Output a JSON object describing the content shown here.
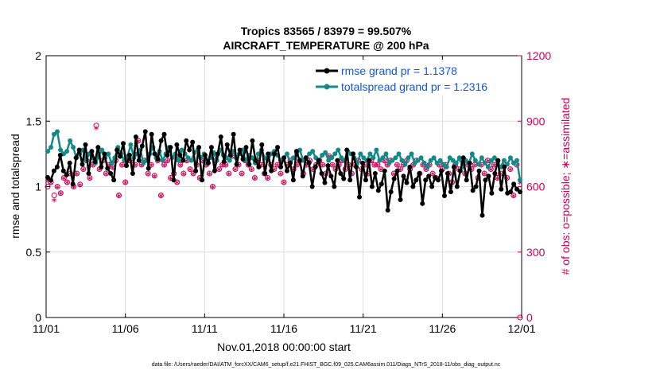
{
  "colors": {
    "rmse": "#000000",
    "spread": "#138a8a",
    "obs": "#cc0055",
    "grid": "#dddddd",
    "legend_text": "#1155ee"
  },
  "chart_data": {
    "type": "line",
    "title_line1": "Tropics 83565 / 83979 = 99.507%",
    "title_line2": "AIRCRAFT_TEMPERATURE @ 200 hPa",
    "ylabel_left": "rmse and totalspread",
    "ylabel_right": "# of obs: o=possible; ∗=assimilated",
    "xlabel": "Nov.01,2018 00:00:00 start",
    "footnote": "data file: /Users/raeder/DAI/ATM_forcXX/CAM6_setup/f.e21.FHIST_BGC.f09_025.CAM6assim.011/Diags_NTrS_2018-11/obs_diag_output.nc",
    "ylim_left": [
      0,
      2
    ],
    "ylim_right": [
      0,
      1200
    ],
    "xlim_days": [
      0,
      30
    ],
    "x_tick_labels": [
      "11/01",
      "11/06",
      "11/11",
      "11/16",
      "11/21",
      "11/26",
      "12/01"
    ],
    "y_tick_labels_left": [
      "0",
      "0.5",
      "1",
      "1.5",
      "2"
    ],
    "y_tick_labels_right": [
      "0",
      "300",
      "600",
      "900",
      "1200"
    ],
    "legend": [
      {
        "label": "rmse grand pr = 1.1378",
        "series": "rmse"
      },
      {
        "label": "totalspread grand pr = 1.2316",
        "series": "totalspread"
      }
    ],
    "series": [
      {
        "name": "rmse",
        "axis": "left",
        "values": [
          1.07,
          1.05,
          1.12,
          1.15,
          1.24,
          1.12,
          1.09,
          1.18,
          1.02,
          1.22,
          1.28,
          1.17,
          1.32,
          1.1,
          1.27,
          1.19,
          1.3,
          1.15,
          1.25,
          1.14,
          1.1,
          1.05,
          1.28,
          1.23,
          1.33,
          1.16,
          1.24,
          1.1,
          1.38,
          1.2,
          1.31,
          1.42,
          1.14,
          1.4,
          1.25,
          1.21,
          1.35,
          1.4,
          1.24,
          1.3,
          1.05,
          1.32,
          1.24,
          1.2,
          1.35,
          1.28,
          1.34,
          1.12,
          1.3,
          1.05,
          1.24,
          1.18,
          1.3,
          1.12,
          1.25,
          1.38,
          1.19,
          1.32,
          1.24,
          1.4,
          1.17,
          1.28,
          1.21,
          1.3,
          1.17,
          1.35,
          1.2,
          1.15,
          1.32,
          1.1,
          1.25,
          1.12,
          1.25,
          1.3,
          1.15,
          1.22,
          1.12,
          1.18,
          1.05,
          1.27,
          1.2,
          1.08,
          1.22,
          1.18,
          1.0,
          1.15,
          1.2,
          1.1,
          1.03,
          1.16,
          1.08,
          1.0,
          1.2,
          1.1,
          1.06,
          1.28,
          1.05,
          1.25,
          1.15,
          0.92,
          1.18,
          1.05,
          1.2,
          1.0,
          1.1,
          0.97,
          1.02,
          1.12,
          0.82,
          0.96,
          1.06,
          1.12,
          0.9,
          1.08,
          1.03,
          1.15,
          1.0,
          1.05,
          1.1,
          0.87,
          1.05,
          1.08,
          1.0,
          1.07,
          1.05,
          1.12,
          0.93,
          1.1,
          0.96,
          1.15,
          1.0,
          1.12,
          1.22,
          1.05,
          1.18,
          0.97,
          1.0,
          1.12,
          0.78,
          1.05,
          1.08,
          0.95,
          1.1,
          1.2,
          0.98,
          1.15,
          0.95,
          0.96,
          1.02,
          0.98,
          0.96
        ]
      },
      {
        "name": "totalspread",
        "axis": "left",
        "values": [
          1.27,
          1.3,
          1.4,
          1.42,
          1.28,
          1.25,
          1.27,
          1.35,
          1.3,
          1.22,
          1.25,
          1.28,
          1.2,
          1.25,
          1.22,
          1.18,
          1.23,
          1.28,
          1.22,
          1.25,
          1.18,
          1.22,
          1.3,
          1.25,
          1.2,
          1.23,
          1.32,
          1.22,
          1.25,
          1.28,
          1.18,
          1.2,
          1.25,
          1.3,
          1.22,
          1.27,
          1.2,
          1.25,
          1.3,
          1.22,
          1.25,
          1.2,
          1.28,
          1.25,
          1.22,
          1.2,
          1.26,
          1.28,
          1.22,
          1.25,
          1.18,
          1.22,
          1.26,
          1.2,
          1.28,
          1.24,
          1.22,
          1.2,
          1.27,
          1.22,
          1.25,
          1.28,
          1.2,
          1.24,
          1.22,
          1.18,
          1.25,
          1.28,
          1.22,
          1.2,
          1.25,
          1.27,
          1.24,
          1.2,
          1.22,
          1.25,
          1.18,
          1.22,
          1.25,
          1.28,
          1.2,
          1.22,
          1.25,
          1.27,
          1.22,
          1.2,
          1.24,
          1.26,
          1.2,
          1.22,
          1.25,
          1.28,
          1.22,
          1.2,
          1.27,
          1.25,
          1.22,
          1.18,
          1.25,
          1.22,
          1.2,
          1.25,
          1.22,
          1.28,
          1.2,
          1.22,
          1.25,
          1.18,
          1.2,
          1.22,
          1.25,
          1.2,
          1.17,
          1.22,
          1.25,
          1.18,
          1.2,
          1.22,
          1.18,
          1.15,
          1.2,
          1.22,
          1.18,
          1.2,
          1.17,
          1.15,
          1.22,
          1.2,
          1.18,
          1.22,
          1.15,
          1.2,
          1.18,
          1.25,
          1.2,
          1.17,
          1.22,
          1.18,
          1.15,
          1.2,
          1.22,
          1.18,
          1.15,
          1.2,
          1.17,
          1.22,
          1.18,
          1.2,
          1.05
        ]
      },
      {
        "name": "obs_assimilated",
        "axis": "right",
        "values": [
          630,
          620,
          540,
          600,
          570,
          640,
          620,
          660,
          600,
          660,
          610,
          680,
          720,
          640,
          700,
          870,
          680,
          720,
          660,
          700,
          690,
          720,
          560,
          700,
          620,
          720,
          720,
          700,
          810,
          700,
          720,
          660,
          700,
          650,
          720,
          560,
          700,
          720,
          640,
          660,
          620,
          700,
          660,
          720,
          680,
          660,
          700,
          640,
          720,
          700,
          660,
          600,
          720,
          680,
          700,
          700,
          660,
          740,
          680,
          700,
          660,
          720,
          700,
          680,
          640,
          720,
          700,
          660,
          640,
          700,
          680,
          700,
          660,
          620,
          700,
          720,
          680,
          700,
          720,
          660,
          700,
          720,
          680,
          700,
          720,
          700,
          660,
          740,
          700,
          680,
          700,
          720,
          680,
          700,
          660,
          700,
          720,
          680,
          700,
          660,
          720,
          700,
          700,
          680,
          720,
          700,
          720,
          660,
          700,
          680,
          700,
          720,
          680,
          700,
          720,
          660,
          700,
          680,
          700,
          660,
          640,
          700,
          680,
          700,
          660,
          620,
          700,
          680,
          720,
          660,
          700,
          680,
          700,
          640,
          700,
          660,
          720,
          680,
          700,
          640,
          660,
          700,
          640,
          680,
          560,
          700,
          620
        ]
      },
      {
        "name": "obs_possible",
        "axis": "right",
        "values": [
          600,
          620,
          560,
          600,
          570,
          640,
          620,
          660,
          600,
          660,
          610,
          680,
          720,
          640,
          700,
          880,
          680,
          720,
          660,
          700,
          690,
          720,
          560,
          700,
          620,
          720,
          720,
          700,
          810,
          700,
          720,
          660,
          700,
          650,
          720,
          560,
          700,
          720,
          640,
          660,
          620,
          700,
          660,
          720,
          680,
          660,
          700,
          640,
          720,
          700,
          660,
          600,
          720,
          680,
          700,
          700,
          660,
          740,
          680,
          700,
          660,
          720,
          700,
          680,
          640,
          720,
          700,
          660,
          640,
          700,
          680,
          700,
          660,
          620,
          700,
          720,
          680,
          700,
          720,
          660,
          700,
          720,
          680,
          700,
          720,
          700,
          660,
          740,
          700,
          680,
          700,
          720,
          680,
          700,
          660,
          700,
          720,
          680,
          700,
          660,
          720,
          700,
          700,
          680,
          720,
          700,
          720,
          660,
          700,
          680,
          700,
          720,
          680,
          700,
          720,
          660,
          700,
          680,
          700,
          660,
          640,
          700,
          680,
          700,
          660,
          620,
          700,
          680,
          720,
          660,
          700,
          680,
          700,
          640,
          700,
          660,
          720,
          680,
          700,
          640,
          660,
          700,
          640,
          680,
          560,
          700,
          0
        ]
      }
    ]
  }
}
